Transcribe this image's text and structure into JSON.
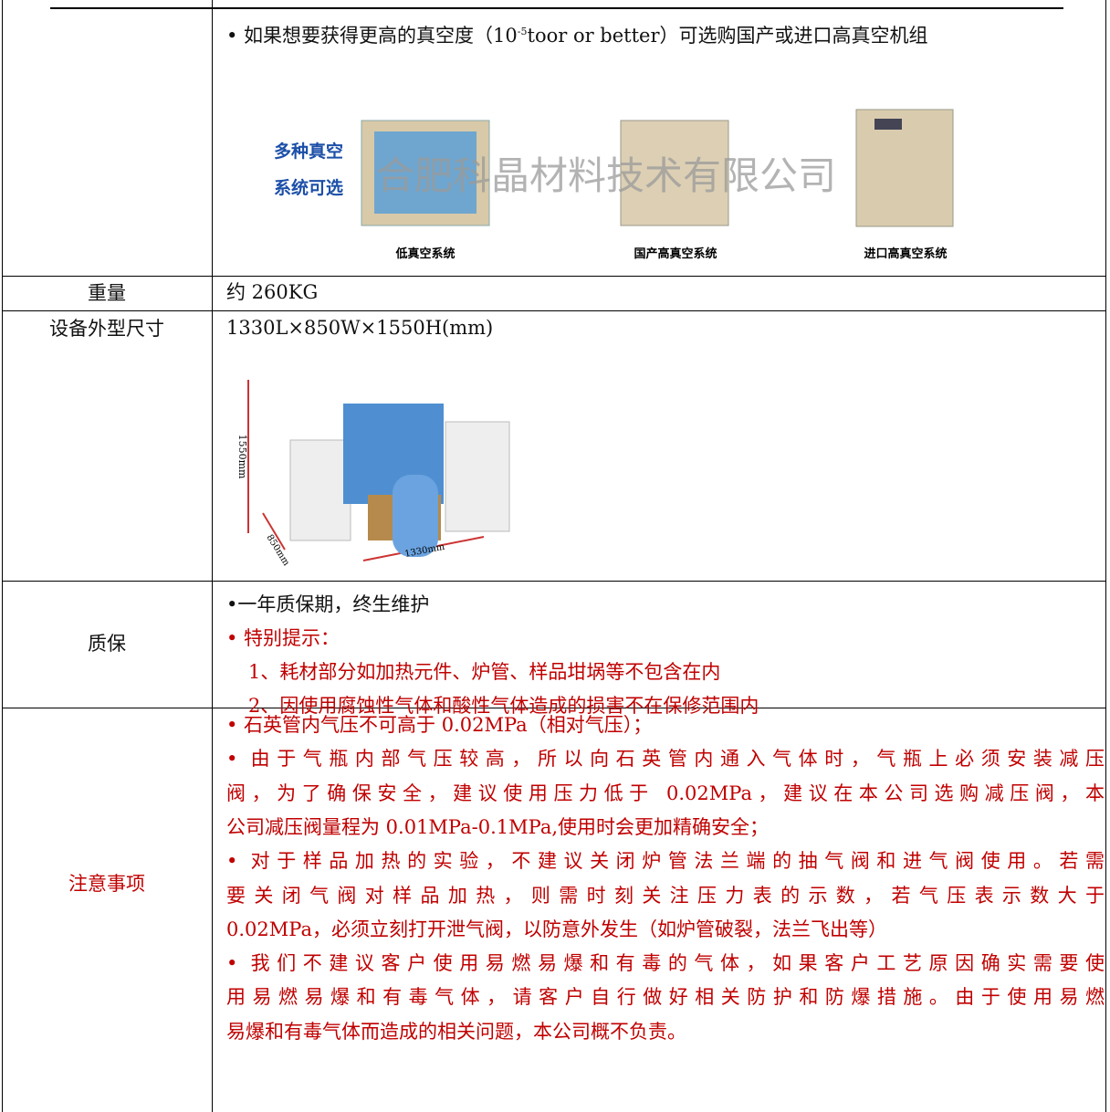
{
  "table": {
    "rows": [
      {
        "text_before": "• 如果想要获得更高的真空度（10",
        "superscript": "-5",
        "text_after": "toor or better）可选购国产或进口高真空机组",
        "image": {
          "side_label_lines": [
            "多种真空",
            "系统可选"
          ],
          "watermark": "合肥科晶材料技术有限公司",
          "captions": [
            "低真空系统",
            "国产高真空系统",
            "进口高真空系统"
          ]
        }
      },
      {
        "label": "重量",
        "value": "约 260KG"
      },
      {
        "label": "设备外型尺寸",
        "value": "1330L×850W×1550H(mm)",
        "image": {
          "dimensions": [
            "1550mm",
            "850mm",
            "1330mm"
          ]
        }
      },
      {
        "label": "质保",
        "lines": [
          "•一年质保期，终生维护",
          "• 特别提示：",
          "1、耗材部分如加热元件、炉管、样品坩埚等不包含在内",
          "2、因使用腐蚀性气体和酸性气体造成的损害不在保修范围内"
        ]
      },
      {
        "label": "注意事项",
        "paragraphs": [
          [
            "• 石英管内气压不可高于 0.02MPa（相对气压）；"
          ],
          [
            "• 由于气瓶内部气压较高，所以向石英管内通入气体时，气瓶上必须安装减压",
            "阀，为了确保安全，建议使用压力低于 0.02MPa，建议在本公司选购减压阀，本",
            "公司减压阀量程为 0.01MPa-0.1MPa,使用时会更加精确安全；"
          ],
          [
            "• 对于样品加热的实验，不建议关闭炉管法兰端的抽气阀和进气阀使用。若需",
            "要关闭气阀对样品加热，则需时刻关注压力表的示数，若气压表示数大于",
            "0.02MPa，必须立刻打开泄气阀，以防意外发生（如炉管破裂，法兰飞出等）"
          ],
          [
            "• 我们不建议客户使用易燃易爆和有毒的气体，如果客户工艺原因确实需要使",
            "用易燃易爆和有毒气体，请客户自行做好相关防护和防爆措施。由于使用易燃",
            "易爆和有毒气体而造成的相关问题，本公司概不负责。"
          ]
        ]
      }
    ]
  }
}
